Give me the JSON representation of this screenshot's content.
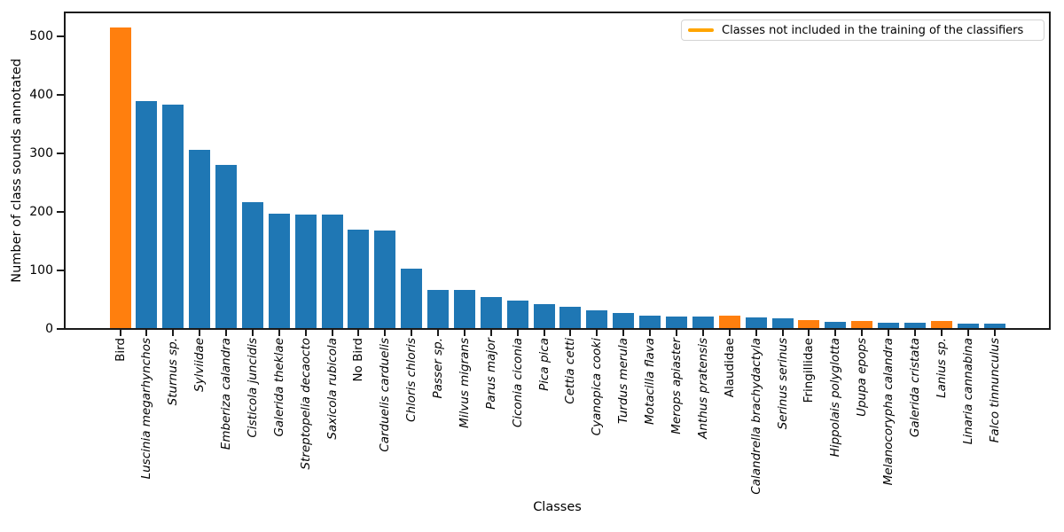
{
  "chart_data": {
    "type": "bar",
    "title": "",
    "xlabel": "Classes",
    "ylabel": "Number of class sounds annotated",
    "ylim": [
      0,
      541
    ],
    "yticks": [
      0,
      100,
      200,
      300,
      400,
      500
    ],
    "grid": false,
    "legend": {
      "position": "upper right",
      "entries": [
        {
          "label": "Classes not included in the training of the classifiers",
          "swatch": "line",
          "color": "#ffa500"
        }
      ]
    },
    "bar_colors": {
      "included": "#1f77b4",
      "not_included": "#ff7f0e"
    },
    "categories": [
      "Bird",
      "Luscinia megarhynchos",
      "Sturnus sp.",
      "Sylviidae",
      "Emberiza calandra",
      "Cisticola juncidis",
      "Galerida theklae",
      "Streptopelia decaocto",
      "Saxicola rubicola",
      "No Bird",
      "Carduelis carduelis",
      "Chloris chloris",
      "Passer sp.",
      "Milvus migrans",
      "Parus major",
      "Ciconia ciconia",
      "Pica pica",
      "Cettia cetti",
      "Cyanopica cooki",
      "Turdus merula",
      "Motacilla flava",
      "Merops apiaster",
      "Anthus pratensis",
      "Alaudidae",
      "Calandrella brachydactyla",
      "Serinus serinus",
      "Fringillidae",
      "Hippolais polyglotta",
      "Upupa epops",
      "Melanocorypha calandra",
      "Galerida cristata",
      "Lanius sp.",
      "Linaria cannabina",
      "Falco tinnunculus"
    ],
    "values": [
      515,
      390,
      384,
      306,
      281,
      217,
      197,
      196,
      196,
      170,
      168,
      103,
      66,
      66,
      54,
      48,
      43,
      38,
      32,
      28,
      23,
      22,
      22,
      23,
      20,
      19,
      15,
      12,
      13,
      11,
      10,
      13,
      9,
      9
    ],
    "not_included_in_training_indices": [
      0,
      23,
      26,
      28,
      31
    ],
    "not_included_in_training_labels": [
      "Bird",
      "Alaudidae",
      "Fringillidae",
      "Upupa epops",
      "Lanius sp."
    ],
    "upright_label_indices": [
      0,
      9,
      23,
      26
    ]
  }
}
